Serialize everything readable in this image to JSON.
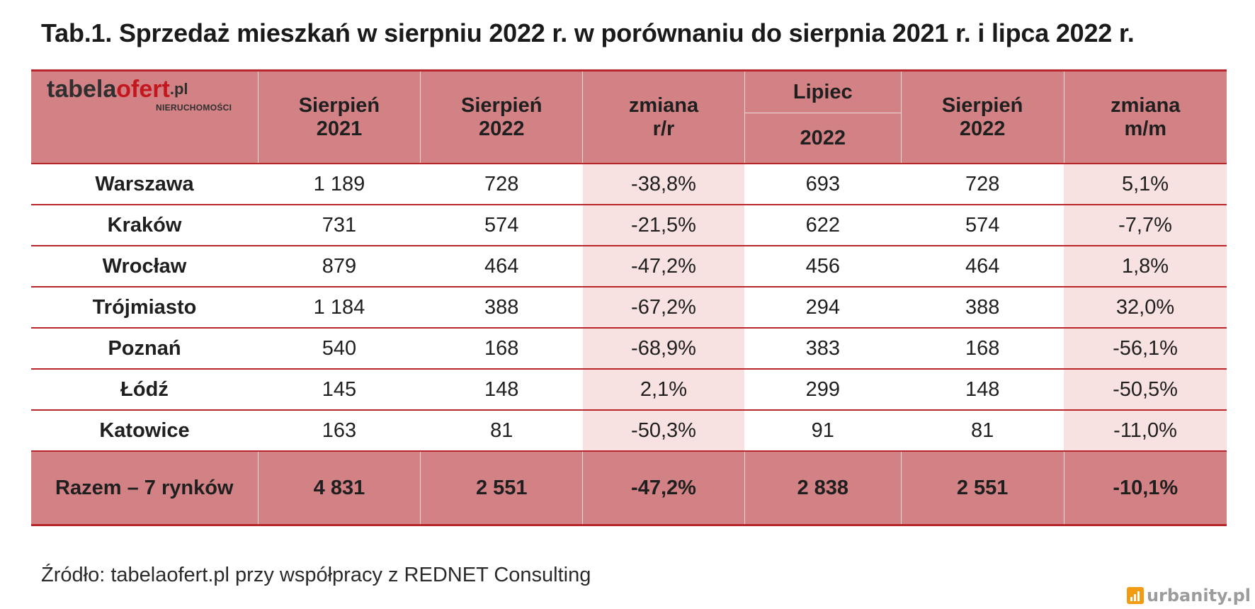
{
  "title": "Tab.1. Sprzedaż mieszkań w sierpniu 2022 r. w porównaniu do sierpnia 2021 r. i lipca 2022 r.",
  "logo": {
    "part1": "tabela",
    "part2": "ofert",
    "part3": ".pl",
    "subtitle": "NIERUCHOMOŚCI"
  },
  "headers": {
    "col1_line1": "Sierpień",
    "col1_line2": "2021",
    "col2_line1": "Sierpień",
    "col2_line2": "2022",
    "col3_line1": "zmiana",
    "col3_line2": "r/r",
    "col4_line1": "Lipiec",
    "col4_line2": "2022",
    "col5_line1": "Sierpień",
    "col5_line2": "2022",
    "col6_line1": "zmiana",
    "col6_line2": "m/m"
  },
  "rows": [
    {
      "city": "Warszawa",
      "aug2021": "1 189",
      "aug2022": "728",
      "yoy": "-38,8%",
      "jul2022": "693",
      "aug2022b": "728",
      "mom": "5,1%"
    },
    {
      "city": "Kraków",
      "aug2021": "731",
      "aug2022": "574",
      "yoy": "-21,5%",
      "jul2022": "622",
      "aug2022b": "574",
      "mom": "-7,7%"
    },
    {
      "city": "Wrocław",
      "aug2021": "879",
      "aug2022": "464",
      "yoy": "-47,2%",
      "jul2022": "456",
      "aug2022b": "464",
      "mom": "1,8%"
    },
    {
      "city": "Trójmiasto",
      "aug2021": "1 184",
      "aug2022": "388",
      "yoy": "-67,2%",
      "jul2022": "294",
      "aug2022b": "388",
      "mom": "32,0%"
    },
    {
      "city": "Poznań",
      "aug2021": "540",
      "aug2022": "168",
      "yoy": "-68,9%",
      "jul2022": "383",
      "aug2022b": "168",
      "mom": "-56,1%"
    },
    {
      "city": "Łódź",
      "aug2021": "145",
      "aug2022": "148",
      "yoy": "2,1%",
      "jul2022": "299",
      "aug2022b": "148",
      "mom": "-50,5%"
    },
    {
      "city": "Katowice",
      "aug2021": "163",
      "aug2022": "81",
      "yoy": "-50,3%",
      "jul2022": "91",
      "aug2022b": "81",
      "mom": "-11,0%"
    }
  ],
  "total": {
    "label": "Razem – 7 rynków",
    "aug2021": "4 831",
    "aug2022": "2 551",
    "yoy": "-47,2%",
    "jul2022": "2 838",
    "aug2022b": "2 551",
    "mom": "-10,1%"
  },
  "source": "Źródło: tabelaofert.pl przy współpracy z REDNET Consulting",
  "watermark": "urbanity.pl",
  "colors": {
    "header_bg": "#d28184",
    "line": "#b8262c",
    "highlight": "#f7e1e1",
    "logo_red": "#c3171f",
    "watermark_icon": "#f39c12"
  }
}
